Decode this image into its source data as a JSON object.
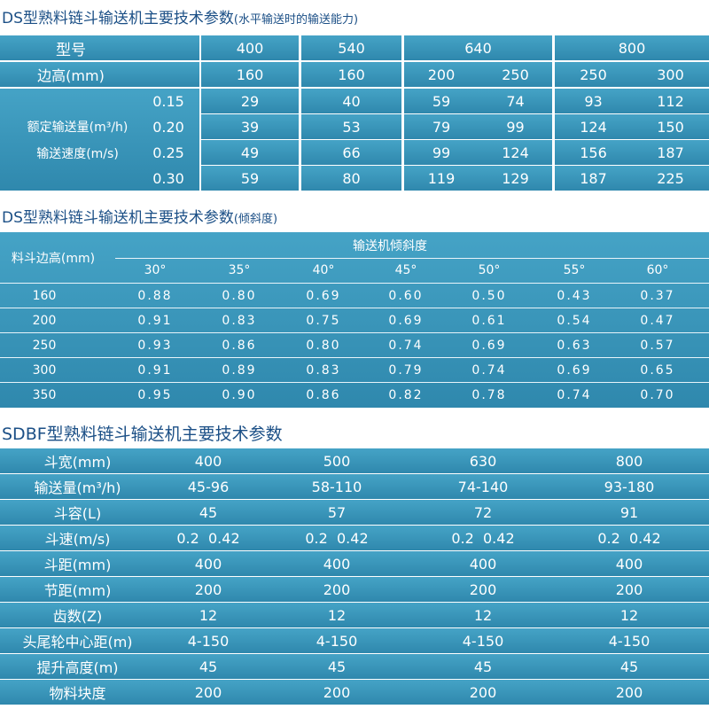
{
  "section1": {
    "title": "DS型熟料链斗输送机主要技术参数",
    "subtitle": "(水平输送时的输送能力)",
    "model_label": "型号",
    "models": [
      "400",
      "540",
      "640",
      "800"
    ],
    "edge_label": "边高(mm)",
    "edges": [
      "160",
      "160",
      "200",
      "250",
      "250",
      "300"
    ],
    "capacity_label": "额定输送量(m³/h)",
    "speed_label": "输送速度(m/s)",
    "rows": [
      {
        "speed": "0.15",
        "values": [
          "29",
          "40",
          "59",
          "74",
          "93",
          "112"
        ]
      },
      {
        "speed": "0.20",
        "values": [
          "39",
          "53",
          "79",
          "99",
          "124",
          "150"
        ]
      },
      {
        "speed": "0.25",
        "values": [
          "49",
          "66",
          "99",
          "124",
          "156",
          "187"
        ]
      },
      {
        "speed": "0.30",
        "values": [
          "59",
          "80",
          "119",
          "129",
          "187",
          "225"
        ]
      }
    ]
  },
  "section2": {
    "title": "DS型熟料链斗输送机主要技术参数",
    "subtitle": "(倾斜度)",
    "row_header": "料斗边高(mm)",
    "col_header": "输送机倾斜度",
    "angles": [
      "30°",
      "35°",
      "40°",
      "45°",
      "50°",
      "55°",
      "60°"
    ],
    "rows": [
      {
        "edge": "160",
        "values": [
          "0.88",
          "0.80",
          "0.69",
          "0.60",
          "0.50",
          "0.43",
          "0.37"
        ]
      },
      {
        "edge": "200",
        "values": [
          "0.91",
          "0.83",
          "0.75",
          "0.69",
          "0.61",
          "0.54",
          "0.47"
        ]
      },
      {
        "edge": "250",
        "values": [
          "0.93",
          "0.86",
          "0.80",
          "0.74",
          "0.69",
          "0.63",
          "0.57"
        ]
      },
      {
        "edge": "300",
        "values": [
          "0.91",
          "0.89",
          "0.83",
          "0.79",
          "0.74",
          "0.69",
          "0.65"
        ]
      },
      {
        "edge": "350",
        "values": [
          "0.95",
          "0.90",
          "0.86",
          "0.82",
          "0.78",
          "0.74",
          "0.70"
        ]
      }
    ]
  },
  "section3": {
    "title": "SDBF型熟料链斗输送机主要技术参数",
    "rows": [
      {
        "label": "斗宽(mm)",
        "values": [
          "400",
          "500",
          "630",
          "800"
        ]
      },
      {
        "label": "输送量(m³/h)",
        "values": [
          "45-96",
          "58-110",
          "74-140",
          "93-180"
        ]
      },
      {
        "label": "斗容(L)",
        "values": [
          "45",
          "57",
          "72",
          "91"
        ]
      },
      {
        "label": "斗速(m/s)",
        "values": [
          "0.2  0.42",
          "0.2  0.42",
          "0.2  0.42",
          "0.2  0.42"
        ]
      },
      {
        "label": "斗距(mm)",
        "values": [
          "400",
          "400",
          "400",
          "400"
        ]
      },
      {
        "label": "节距(mm)",
        "values": [
          "200",
          "200",
          "200",
          "200"
        ]
      },
      {
        "label": "齿数(Z)",
        "values": [
          "12",
          "12",
          "12",
          "12"
        ]
      },
      {
        "label": "头尾轮中心距(m)",
        "values": [
          "4-150",
          "4-150",
          "4-150",
          "4-150"
        ]
      },
      {
        "label": "提升高度(m)",
        "values": [
          "45",
          "45",
          "45",
          "45"
        ]
      },
      {
        "label": "物料块度",
        "values": [
          "200",
          "200",
          "200",
          "200"
        ]
      }
    ]
  }
}
